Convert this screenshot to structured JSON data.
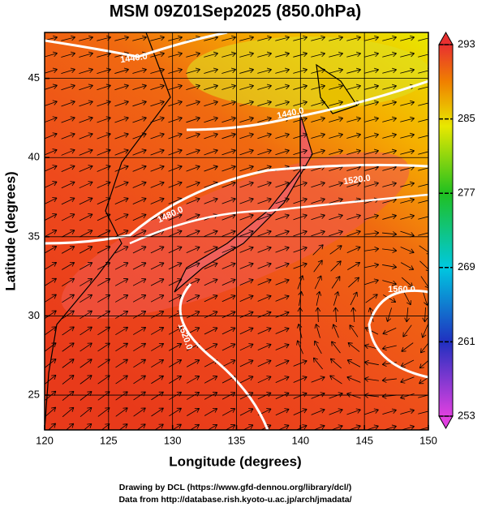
{
  "title": "MSM 09Z01Sep2025 (850.0hPa)",
  "axes": {
    "x_label": "Longitude (degrees)",
    "y_label": "Latitude  (degrees)",
    "xlim": [
      120,
      150
    ],
    "xticks": [
      120,
      125,
      130,
      135,
      140,
      145,
      150
    ],
    "ylim": [
      22.8,
      47.9
    ],
    "yticks": [
      25,
      30,
      35,
      40,
      45
    ]
  },
  "colorbar": {
    "lim": [
      253,
      293
    ],
    "ticks": [
      253,
      261,
      269,
      277,
      285,
      293
    ]
  },
  "contour_labels": [
    "1440.0",
    "1440.0",
    "1480.0",
    "1520.0",
    "1520.0",
    "1560.0"
  ],
  "credits": [
    "Drawing by DCL (https://www.gfd-dennou.org/library/dcl/)",
    "Data from http://database.rish.kyoto-u.ac.jp/arch/jmadata/"
  ]
}
